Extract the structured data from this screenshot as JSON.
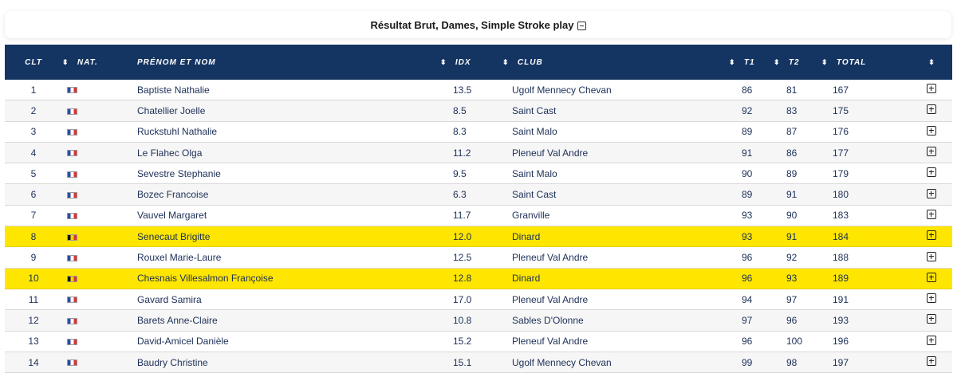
{
  "header": {
    "title": "Résultat Brut, Dames, Simple Stroke play"
  },
  "table": {
    "columns": {
      "clt": "CLT",
      "nat": "NAT.",
      "name": "PRÉNOM ET NOM",
      "idx": "IDX",
      "club": "CLUB",
      "t1": "T1",
      "t2": "T2",
      "total": "TOTAL"
    },
    "rows": [
      {
        "clt": "1",
        "flag": "fr",
        "name": "Baptiste Nathalie",
        "idx": "13.5",
        "club": "Ugolf Mennecy Chevan",
        "t1": "86",
        "t2": "81",
        "total": "167",
        "highlight": false
      },
      {
        "clt": "2",
        "flag": "fr",
        "name": "Chatellier Joelle",
        "idx": "8.5",
        "club": "Saint Cast",
        "t1": "92",
        "t2": "83",
        "total": "175",
        "highlight": false
      },
      {
        "clt": "3",
        "flag": "fr",
        "name": "Ruckstuhl Nathalie",
        "idx": "8.3",
        "club": "Saint Malo",
        "t1": "89",
        "t2": "87",
        "total": "176",
        "highlight": false
      },
      {
        "clt": "4",
        "flag": "fr",
        "name": "Le Flahec Olga",
        "idx": "11.2",
        "club": "Pleneuf Val Andre",
        "t1": "91",
        "t2": "86",
        "total": "177",
        "highlight": false
      },
      {
        "clt": "5",
        "flag": "fr",
        "name": "Sevestre Stephanie",
        "idx": "9.5",
        "club": "Saint Malo",
        "t1": "90",
        "t2": "89",
        "total": "179",
        "highlight": false
      },
      {
        "clt": "6",
        "flag": "fr",
        "name": "Bozec Francoise",
        "idx": "6.3",
        "club": "Saint Cast",
        "t1": "89",
        "t2": "91",
        "total": "180",
        "highlight": false
      },
      {
        "clt": "7",
        "flag": "fr",
        "name": "Vauvel Margaret",
        "idx": "11.7",
        "club": "Granville",
        "t1": "93",
        "t2": "90",
        "total": "183",
        "highlight": false
      },
      {
        "clt": "8",
        "flag": "be",
        "name": "Senecaut Brigitte",
        "idx": "12.0",
        "club": "Dinard",
        "t1": "93",
        "t2": "91",
        "total": "184",
        "highlight": true
      },
      {
        "clt": "9",
        "flag": "fr",
        "name": "Rouxel Marie-Laure",
        "idx": "12.5",
        "club": "Pleneuf Val Andre",
        "t1": "96",
        "t2": "92",
        "total": "188",
        "highlight": false
      },
      {
        "clt": "10",
        "flag": "be",
        "name": "Chesnais Villesalmon Françoise",
        "idx": "12.8",
        "club": "Dinard",
        "t1": "96",
        "t2": "93",
        "total": "189",
        "highlight": true
      },
      {
        "clt": "11",
        "flag": "fr",
        "name": "Gavard Samira",
        "idx": "17.0",
        "club": "Pleneuf Val Andre",
        "t1": "94",
        "t2": "97",
        "total": "191",
        "highlight": false
      },
      {
        "clt": "12",
        "flag": "fr",
        "name": "Barets Anne-Claire",
        "idx": "10.8",
        "club": "Sables D'Olonne",
        "t1": "97",
        "t2": "96",
        "total": "193",
        "highlight": false
      },
      {
        "clt": "13",
        "flag": "fr",
        "name": "David-Amicel Danièle",
        "idx": "15.2",
        "club": "Pleneuf Val Andre",
        "t1": "96",
        "t2": "100",
        "total": "196",
        "highlight": false
      },
      {
        "clt": "14",
        "flag": "fr",
        "name": "Baudry Christine",
        "idx": "15.1",
        "club": "Ugolf Mennecy Chevan",
        "t1": "99",
        "t2": "98",
        "total": "197",
        "highlight": false
      }
    ]
  }
}
